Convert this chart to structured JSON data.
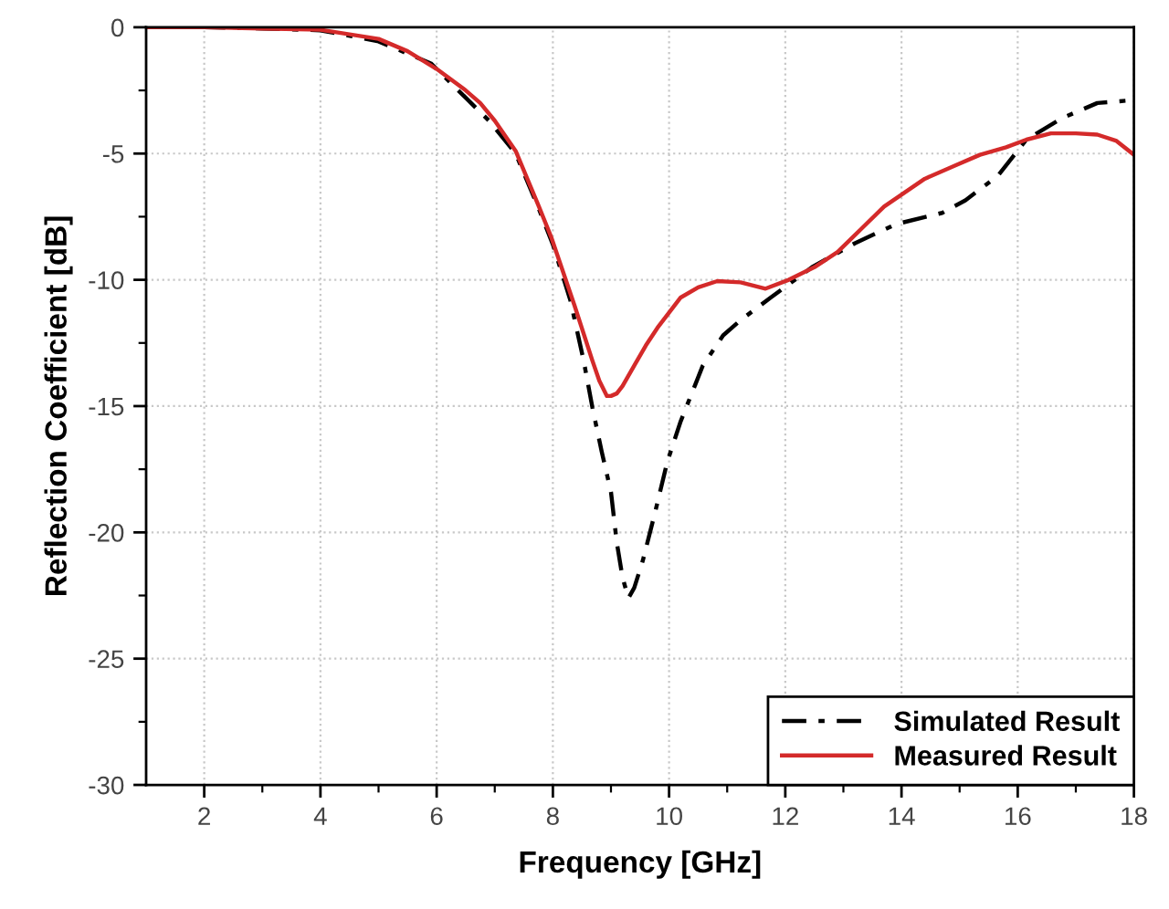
{
  "chart_data": {
    "type": "line",
    "xlabel": "Frequency [GHz]",
    "ylabel": "Reflection Coefficient [dB]",
    "xlim": [
      1,
      18
    ],
    "ylim": [
      -30,
      0
    ],
    "xticks": [
      2,
      4,
      6,
      8,
      10,
      12,
      14,
      16,
      18,
      {
        "value": 3,
        "label": null
      },
      {
        "value": 5,
        "label": null
      },
      {
        "value": 7,
        "label": null
      },
      {
        "value": 9,
        "label": null
      },
      {
        "value": 11,
        "label": null
      },
      {
        "value": 13,
        "label": null
      },
      {
        "value": 15,
        "label": null
      },
      {
        "value": 17,
        "label": null
      }
    ],
    "yticks": [
      0,
      -5,
      -10,
      -15,
      -20,
      -25,
      -30,
      {
        "value": -2.5,
        "label": null
      },
      {
        "value": -7.5,
        "label": null
      },
      {
        "value": -12.5,
        "label": null
      },
      {
        "value": -17.5,
        "label": null
      },
      {
        "value": -22.5,
        "label": null
      },
      {
        "value": -27.5,
        "label": null
      }
    ],
    "grid": true,
    "legend": "bottom right",
    "series": [
      {
        "name": "Simulated Result",
        "color": "#000000",
        "line_style": "dashdot",
        "x": [
          1,
          2,
          3,
          4,
          5,
          5.9,
          6.9,
          7.36,
          7.76,
          8.0,
          8.3,
          8.53,
          8.68,
          8.84,
          9.0,
          9.1,
          9.2,
          9.3,
          9.4,
          9.55,
          9.76,
          9.97,
          10.2,
          10.58,
          10.93,
          11.23,
          11.75,
          12.46,
          13.2,
          13.9,
          14.7,
          15.1,
          15.65,
          16.15,
          16.76,
          17.37,
          17.9,
          18
        ],
        "values": [
          0,
          0,
          -0.05,
          -0.12,
          -0.56,
          -1.43,
          -3.7,
          -5.0,
          -7.2,
          -8.6,
          -10.8,
          -13.2,
          -15.05,
          -16.8,
          -18.4,
          -20.4,
          -21.8,
          -22.6,
          -22.2,
          -21.1,
          -19.2,
          -17.2,
          -15.6,
          -13.4,
          -12.2,
          -11.6,
          -10.7,
          -9.5,
          -8.55,
          -7.8,
          -7.35,
          -6.85,
          -5.9,
          -4.45,
          -3.6,
          -3.0,
          -2.9,
          -2.9
        ]
      },
      {
        "name": "Measured Result",
        "color": "#d42a2a",
        "line_style": "solid",
        "x": [
          1,
          2,
          3,
          4,
          5,
          5.5,
          6,
          6.5,
          6.75,
          7,
          7.36,
          7.76,
          7.97,
          8.37,
          8.68,
          8.8,
          8.93,
          9.0,
          9.1,
          9.2,
          9.4,
          9.6,
          9.8,
          10.2,
          10.5,
          10.83,
          11.23,
          11.66,
          12.06,
          12.5,
          12.9,
          13.3,
          13.7,
          14.4,
          14.9,
          15.35,
          15.8,
          16.15,
          16.57,
          17.0,
          17.37,
          17.7,
          18
        ],
        "values": [
          0,
          0,
          -0.05,
          -0.1,
          -0.46,
          -0.95,
          -1.65,
          -2.5,
          -3.0,
          -3.7,
          -4.9,
          -7.1,
          -8.3,
          -11.0,
          -13.2,
          -14.0,
          -14.6,
          -14.6,
          -14.5,
          -14.2,
          -13.4,
          -12.6,
          -11.9,
          -10.7,
          -10.3,
          -10.05,
          -10.1,
          -10.35,
          -10.0,
          -9.5,
          -8.9,
          -8.0,
          -7.1,
          -6.0,
          -5.5,
          -5.05,
          -4.75,
          -4.45,
          -4.2,
          -4.2,
          -4.25,
          -4.5,
          -5.05
        ]
      }
    ]
  }
}
